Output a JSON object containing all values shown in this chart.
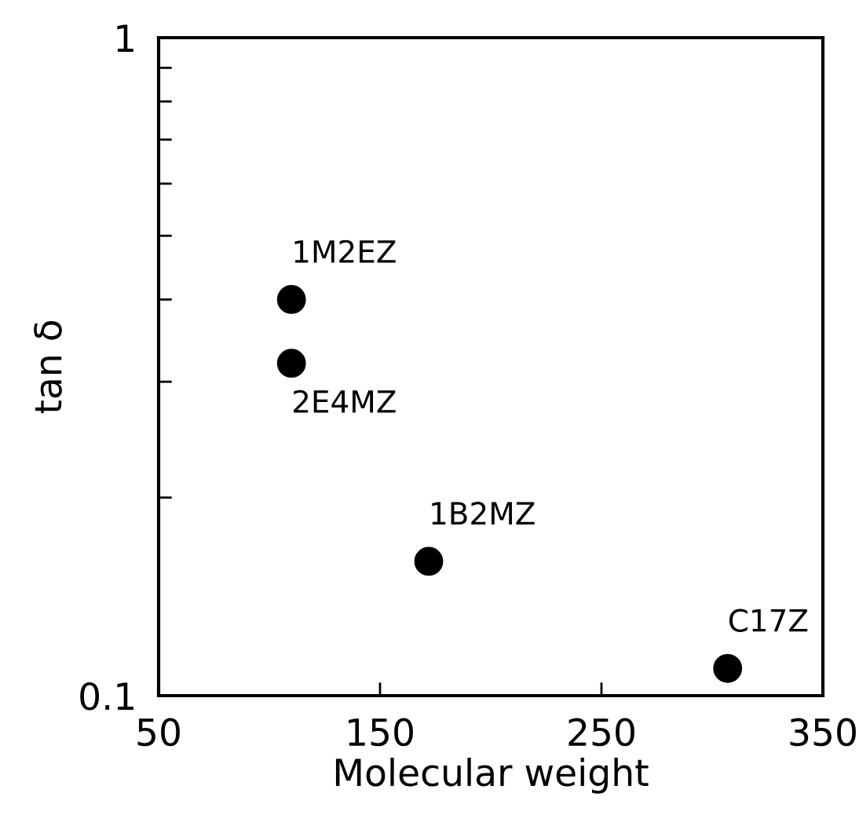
{
  "chart_data": {
    "type": "scatter",
    "xlabel": "Molecular weight",
    "ylabel": "tan δ",
    "x": [
      110,
      110,
      172,
      307
    ],
    "values": [
      0.4,
      0.32,
      0.16,
      0.11
    ],
    "color": "#000000",
    "marker": "circle",
    "log": "y",
    "xlim": [
      50,
      350
    ],
    "xticks": [
      50,
      150,
      250,
      350
    ],
    "ylim": [
      0.1,
      1
    ],
    "yticks": [
      {
        "value": 0.1,
        "label": "0.1"
      },
      {
        "value": 0.2,
        "label": null
      },
      {
        "value": 0.3,
        "label": null
      },
      {
        "value": 0.4,
        "label": null
      },
      {
        "value": 0.5,
        "label": null
      },
      {
        "value": 0.6,
        "label": null
      },
      {
        "value": 0.7,
        "label": null
      },
      {
        "value": 0.8,
        "label": null
      },
      {
        "value": 0.9,
        "label": null
      },
      1
    ],
    "grid": false,
    "legend": false,
    "annotations": [
      {
        "text": "1M2EZ",
        "x": 110,
        "y": 0.4
      },
      {
        "text": "2E4MZ",
        "x": 110,
        "y": 0.32
      },
      {
        "text": "1B2MZ",
        "x": 172,
        "y": 0.16
      },
      {
        "text": "C17Z",
        "x": 307,
        "y": 0.11
      }
    ]
  }
}
